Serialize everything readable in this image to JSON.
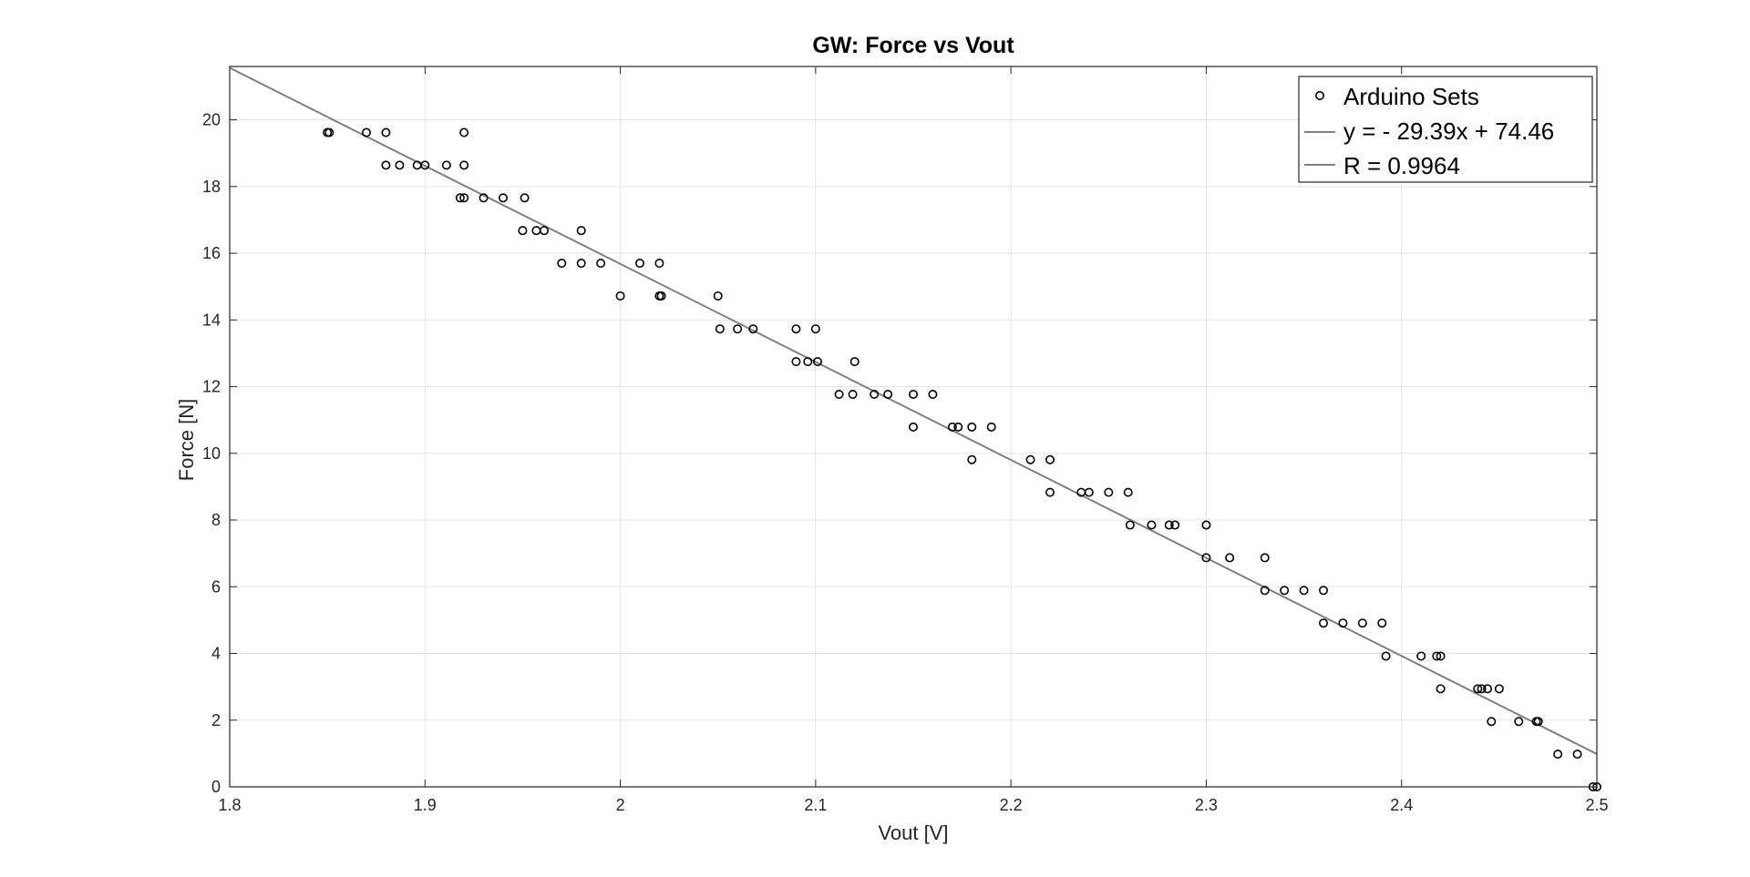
{
  "chart_data": {
    "type": "scatter",
    "title": "GW: Force vs Vout",
    "xlabel": "Vout [V]",
    "ylabel": "Force [N]",
    "xlim": [
      1.8,
      2.5
    ],
    "ylim": [
      0,
      21.6
    ],
    "xticks": [
      1.8,
      1.9,
      2.0,
      2.1,
      2.2,
      2.3,
      2.4,
      2.5
    ],
    "xtick_labels": [
      "1.8",
      "1.9",
      "2",
      "2.1",
      "2.2",
      "2.3",
      "2.4",
      "2.5"
    ],
    "yticks": [
      0,
      2,
      4,
      6,
      8,
      10,
      12,
      14,
      16,
      18,
      20
    ],
    "ytick_labels": [
      "0",
      "2",
      "4",
      "6",
      "8",
      "10",
      "12",
      "14",
      "16",
      "18",
      "20"
    ],
    "grid": true,
    "legend_position": "top-right",
    "colors": {
      "points": "#000000",
      "fit_line": "#808080",
      "grid": "#e5e5e5",
      "axes": "#262626"
    },
    "series": [
      {
        "name": "Arduino Sets",
        "marker": "circle-open",
        "points": [
          [
            1.85,
            19.62
          ],
          [
            1.851,
            19.62
          ],
          [
            1.87,
            19.62
          ],
          [
            1.88,
            19.62
          ],
          [
            1.92,
            19.62
          ],
          [
            1.88,
            18.64
          ],
          [
            1.887,
            18.64
          ],
          [
            1.896,
            18.64
          ],
          [
            1.9,
            18.64
          ],
          [
            1.911,
            18.64
          ],
          [
            1.92,
            18.64
          ],
          [
            1.918,
            17.66
          ],
          [
            1.92,
            17.66
          ],
          [
            1.93,
            17.66
          ],
          [
            1.94,
            17.66
          ],
          [
            1.951,
            17.66
          ],
          [
            1.95,
            16.68
          ],
          [
            1.957,
            16.68
          ],
          [
            1.961,
            16.68
          ],
          [
            1.98,
            16.68
          ],
          [
            1.97,
            15.7
          ],
          [
            1.98,
            15.7
          ],
          [
            1.99,
            15.7
          ],
          [
            2.01,
            15.7
          ],
          [
            2.02,
            15.7
          ],
          [
            2.0,
            14.72
          ],
          [
            2.02,
            14.72
          ],
          [
            2.021,
            14.72
          ],
          [
            2.05,
            14.72
          ],
          [
            2.051,
            13.73
          ],
          [
            2.06,
            13.73
          ],
          [
            2.068,
            13.73
          ],
          [
            2.09,
            13.73
          ],
          [
            2.1,
            13.73
          ],
          [
            2.09,
            12.75
          ],
          [
            2.096,
            12.75
          ],
          [
            2.101,
            12.75
          ],
          [
            2.12,
            12.75
          ],
          [
            2.112,
            11.77
          ],
          [
            2.119,
            11.77
          ],
          [
            2.13,
            11.77
          ],
          [
            2.137,
            11.77
          ],
          [
            2.15,
            11.77
          ],
          [
            2.16,
            11.77
          ],
          [
            2.15,
            10.79
          ],
          [
            2.17,
            10.79
          ],
          [
            2.173,
            10.79
          ],
          [
            2.18,
            10.79
          ],
          [
            2.19,
            10.79
          ],
          [
            2.18,
            9.81
          ],
          [
            2.21,
            9.81
          ],
          [
            2.22,
            9.81
          ],
          [
            2.22,
            8.83
          ],
          [
            2.236,
            8.83
          ],
          [
            2.24,
            8.83
          ],
          [
            2.25,
            8.83
          ],
          [
            2.26,
            8.83
          ],
          [
            2.261,
            7.85
          ],
          [
            2.272,
            7.85
          ],
          [
            2.281,
            7.85
          ],
          [
            2.284,
            7.85
          ],
          [
            2.3,
            7.85
          ],
          [
            2.3,
            6.87
          ],
          [
            2.312,
            6.87
          ],
          [
            2.33,
            6.87
          ],
          [
            2.33,
            5.89
          ],
          [
            2.34,
            5.89
          ],
          [
            2.35,
            5.89
          ],
          [
            2.36,
            5.89
          ],
          [
            2.36,
            4.91
          ],
          [
            2.37,
            4.91
          ],
          [
            2.38,
            4.91
          ],
          [
            2.39,
            4.91
          ],
          [
            2.392,
            3.92
          ],
          [
            2.41,
            3.92
          ],
          [
            2.418,
            3.92
          ],
          [
            2.42,
            3.92
          ],
          [
            2.42,
            2.94
          ],
          [
            2.439,
            2.94
          ],
          [
            2.441,
            2.94
          ],
          [
            2.444,
            2.94
          ],
          [
            2.45,
            2.94
          ],
          [
            2.446,
            1.96
          ],
          [
            2.46,
            1.96
          ],
          [
            2.469,
            1.96
          ],
          [
            2.47,
            1.96
          ],
          [
            2.48,
            0.98
          ],
          [
            2.49,
            0.98
          ],
          [
            2.498,
            0.0
          ],
          [
            2.5,
            0.0
          ]
        ]
      },
      {
        "name": "y = - 29.39x + 74.46",
        "type": "line",
        "slope": -29.39,
        "intercept": 74.46
      },
      {
        "name": "R = 0.9964",
        "type": "line"
      }
    ]
  }
}
